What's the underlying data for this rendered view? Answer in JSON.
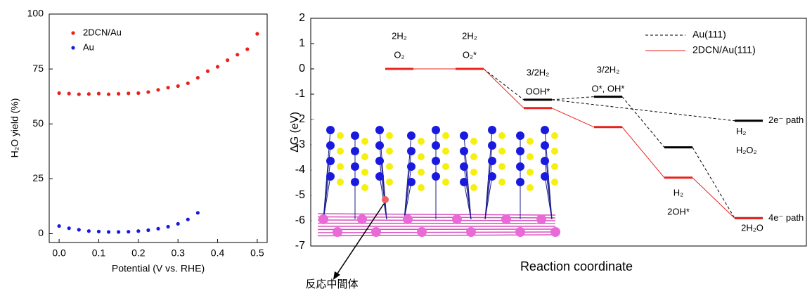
{
  "charts": [
    {
      "type": "scatter",
      "ylabel": "H₂O yield (%)",
      "xlabel": "Potential (V vs. RHE)",
      "xlim": [
        -0.025,
        0.525
      ],
      "xticks": [
        {
          "value": 0,
          "label": "0.0"
        },
        {
          "value": 0.1,
          "label": "0.1"
        },
        {
          "value": 0.2,
          "label": "0.2"
        },
        {
          "value": 0.3,
          "label": "0.3"
        },
        {
          "value": 0.4,
          "label": "0.4"
        },
        {
          "value": 0.5,
          "label": "0.5"
        }
      ],
      "ylim": [
        -4,
        100
      ],
      "yticks": [
        0,
        25,
        50,
        75,
        100
      ],
      "legend": "upper left",
      "series": [
        {
          "name": "2DCN/Au",
          "color": "#e8231c",
          "x": [
            0,
            0.025,
            0.05,
            0.075,
            0.1,
            0.125,
            0.15,
            0.175,
            0.2,
            0.225,
            0.25,
            0.275,
            0.3,
            0.325,
            0.35,
            0.375,
            0.4,
            0.425,
            0.45,
            0.475,
            0.5
          ],
          "values": [
            64,
            63.8,
            63.5,
            63.6,
            63.8,
            63.5,
            63.7,
            63.9,
            64,
            64.5,
            65.5,
            66.5,
            67.2,
            68.5,
            71,
            74,
            76,
            79,
            81.5,
            84,
            91
          ]
        },
        {
          "name": "Au",
          "color": "#1a1adf",
          "x": [
            0,
            0.025,
            0.05,
            0.075,
            0.1,
            0.125,
            0.15,
            0.175,
            0.2,
            0.225,
            0.25,
            0.275,
            0.3,
            0.325,
            0.35
          ],
          "values": [
            3.5,
            2.5,
            1.8,
            1.2,
            1,
            0.8,
            0.8,
            0.9,
            1.2,
            1.6,
            2.3,
            3.2,
            4.5,
            6.5,
            9.5
          ]
        }
      ]
    },
    {
      "type": "energy_diagram",
      "ylabel": "ΔG (eV)",
      "xlabel": "Reaction coordinate",
      "ylim": [
        -7,
        2
      ],
      "yticks": [
        -7,
        -6,
        -5,
        -4,
        -3,
        -2,
        -1,
        0,
        1,
        2
      ],
      "legend": "upper right",
      "series": [
        {
          "name": "Au(111)",
          "color": "#000000",
          "dash": true,
          "values": [
            0,
            0,
            -1.22,
            -1.1,
            -3.1,
            -5.9
          ],
          "branch": {
            "value": -2.05,
            "label": "2e⁻ path",
            "labels": [
              "H₂",
              "H₂O₂"
            ]
          }
        },
        {
          "name": "2DCN/Au(111)",
          "color": "#e8231c",
          "values": [
            0,
            0,
            -1.55,
            -2.3,
            -4.3,
            -5.9
          ]
        }
      ],
      "end_label": "4e⁻ path",
      "step_labels": [
        [
          "2H₂",
          "O₂"
        ],
        [
          "2H₂",
          "O₂*"
        ],
        [
          "3/2H₂",
          "OOH*"
        ],
        [
          "3/2H₂",
          "O*, OH*"
        ],
        [
          "H₂",
          "2OH*"
        ],
        [
          "2H₂O"
        ]
      ],
      "inset_annotation": "反応中間体"
    }
  ]
}
